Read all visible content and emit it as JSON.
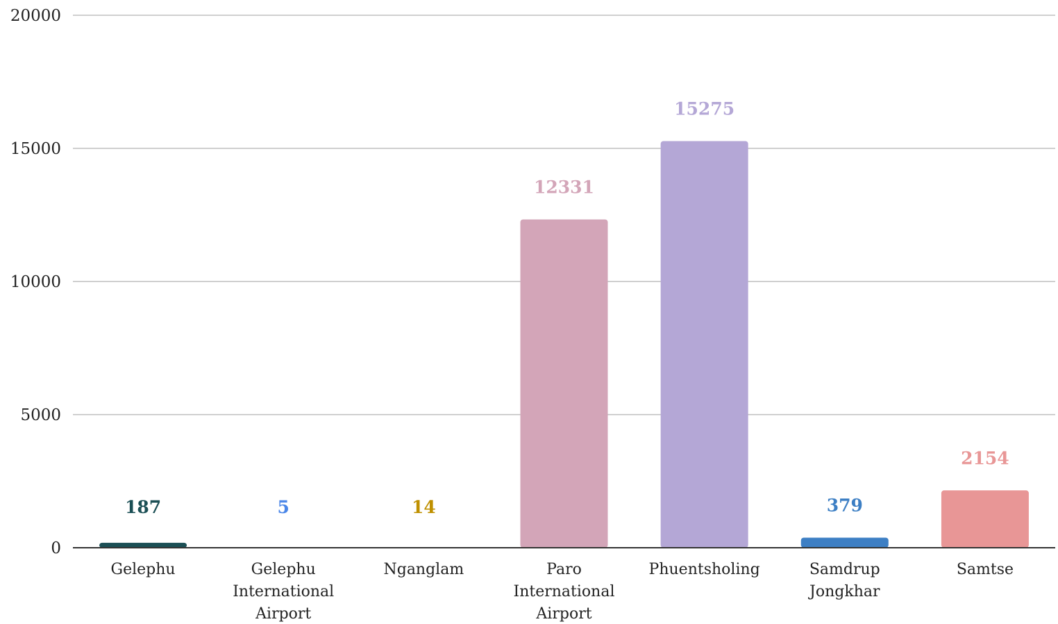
{
  "chart_data": {
    "type": "bar",
    "categories": [
      "Gelephu",
      "Gelephu International Airport",
      "Nganglam",
      "Paro International Airport",
      "Phuentsholing",
      "Samdrup Jongkhar",
      "Samtse"
    ],
    "category_lines": [
      [
        "Gelephu"
      ],
      [
        "Gelephu",
        "International",
        "Airport"
      ],
      [
        "Nganglam"
      ],
      [
        "Paro",
        "International",
        "Airport"
      ],
      [
        "Phuentsholing"
      ],
      [
        "Samdrup",
        "Jongkhar"
      ],
      [
        "Samtse"
      ]
    ],
    "values": [
      187,
      5,
      14,
      12331,
      15275,
      379,
      2154
    ],
    "bar_colors": [
      "#1b4f55",
      "#4a86e8",
      "#bf9000",
      "#d3a5b8",
      "#b4a7d6",
      "#3d7fc4",
      "#e89696"
    ],
    "title": "",
    "xlabel": "",
    "ylabel": "",
    "ylim": [
      0,
      20000
    ],
    "yticks": [
      0,
      5000,
      10000,
      15000,
      20000
    ],
    "ytick_labels": [
      "0",
      "5000",
      "10000",
      "15000",
      "20000"
    ],
    "grid": true,
    "legend": "none",
    "data_labels": true
  }
}
